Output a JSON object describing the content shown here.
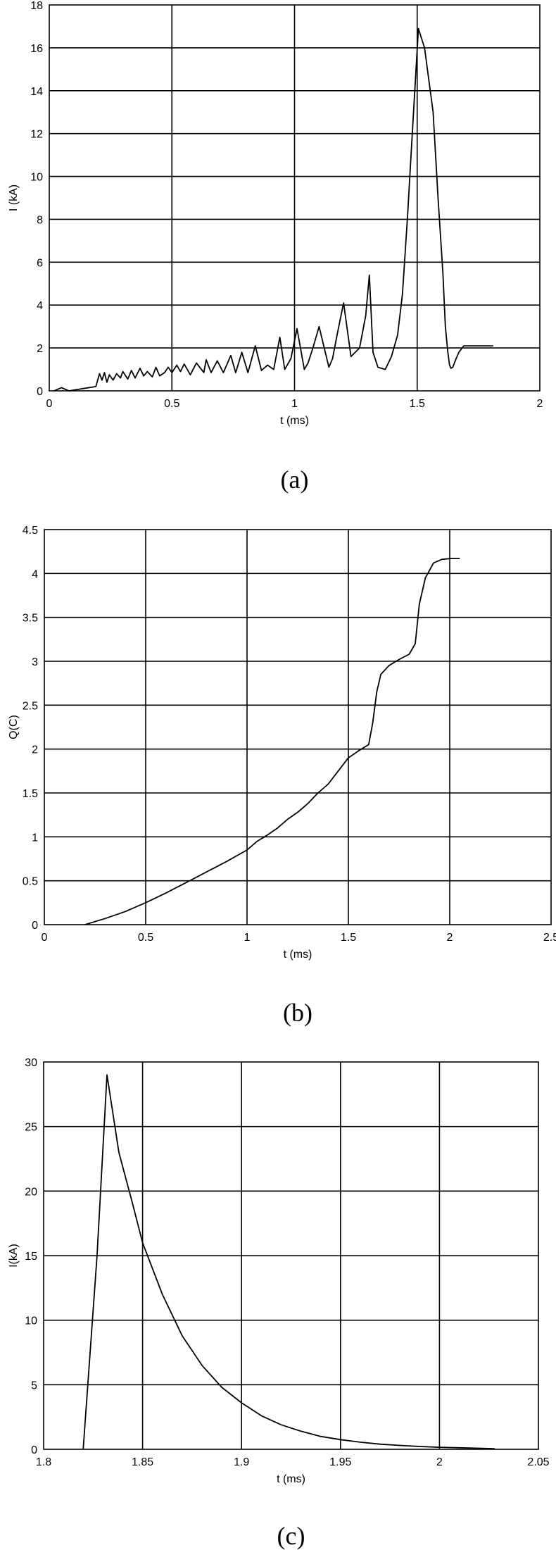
{
  "chart_data": [
    {
      "type": "line",
      "caption": "(a)",
      "xlabel": "t (ms)",
      "ylabel": "I (kA)",
      "xlim": [
        0,
        2
      ],
      "ylim": [
        0,
        18
      ],
      "xticks": [
        0,
        0.5,
        1,
        1.5,
        2
      ],
      "yticks": [
        0,
        2,
        4,
        6,
        8,
        10,
        12,
        14,
        16,
        18
      ],
      "xtick_labels": [
        "0",
        "0.5",
        "1",
        "1.5",
        "2"
      ],
      "ytick_labels": [
        "0",
        "2",
        "4",
        "6",
        "8",
        "10",
        "12",
        "14",
        "16",
        "18"
      ],
      "grid": true,
      "series": [
        {
          "x": [
            0.02,
            0.05,
            0.08,
            0.19,
            0.205,
            0.215,
            0.225,
            0.235,
            0.245,
            0.26,
            0.275,
            0.29,
            0.3,
            0.32,
            0.335,
            0.35,
            0.37,
            0.385,
            0.4,
            0.42,
            0.435,
            0.45,
            0.47,
            0.485,
            0.5,
            0.52,
            0.535,
            0.55,
            0.575,
            0.6,
            0.63,
            0.64,
            0.66,
            0.685,
            0.71,
            0.74,
            0.76,
            0.785,
            0.81,
            0.84,
            0.865,
            0.89,
            0.915,
            0.94,
            0.96,
            0.985,
            1.01,
            1.04,
            1.055,
            1.075,
            1.1,
            1.14,
            1.155,
            1.175,
            1.2,
            1.23,
            1.265,
            1.29,
            1.305,
            1.32,
            1.34,
            1.37,
            1.395,
            1.42,
            1.44,
            1.46,
            1.48,
            1.505,
            1.53,
            1.565,
            1.585,
            1.605,
            1.615,
            1.625,
            1.632,
            1.638,
            1.645,
            1.655,
            1.67,
            1.69,
            1.71,
            1.74,
            1.77,
            1.795,
            1.81
          ],
          "y": [
            0.0,
            0.15,
            0.0,
            0.2,
            0.8,
            0.5,
            0.85,
            0.4,
            0.75,
            0.5,
            0.8,
            0.6,
            0.9,
            0.55,
            0.95,
            0.6,
            1.05,
            0.7,
            0.9,
            0.65,
            1.1,
            0.7,
            0.85,
            1.1,
            0.85,
            1.2,
            0.9,
            1.25,
            0.75,
            1.3,
            0.85,
            1.45,
            0.85,
            1.4,
            0.85,
            1.65,
            0.85,
            1.8,
            0.85,
            2.1,
            0.95,
            1.2,
            1.0,
            2.5,
            1.0,
            1.5,
            2.9,
            1.0,
            1.3,
            2.0,
            3.0,
            1.1,
            1.5,
            2.7,
            4.1,
            1.6,
            2.0,
            3.5,
            5.4,
            1.8,
            1.1,
            1.0,
            1.6,
            2.6,
            4.5,
            8.0,
            12.0,
            16.9,
            16.0,
            13.0,
            9.0,
            5.5,
            3.0,
            1.8,
            1.2,
            1.05,
            1.1,
            1.4,
            1.8,
            2.1,
            2.1,
            2.1,
            2.1,
            2.1,
            2.1
          ]
        }
      ]
    },
    {
      "type": "line",
      "caption": "(b)",
      "xlabel": "t (ms)",
      "ylabel": "Q(C)",
      "xlim": [
        0,
        2.5
      ],
      "ylim": [
        0,
        4.5
      ],
      "xticks": [
        0,
        0.5,
        1,
        1.5,
        2,
        2.5
      ],
      "yticks": [
        0,
        0.5,
        1,
        1.5,
        2,
        2.5,
        3,
        3.5,
        4,
        4.5
      ],
      "xtick_labels": [
        "0",
        "0.5",
        "1",
        "1.5",
        "2",
        "2.5"
      ],
      "ytick_labels": [
        "0",
        "0.5",
        "1",
        "1.5",
        "2",
        "2.5",
        "3",
        "3.5",
        "4",
        "4.5"
      ],
      "grid": true,
      "series": [
        {
          "x": [
            0.2,
            0.3,
            0.4,
            0.5,
            0.6,
            0.7,
            0.8,
            0.9,
            1.0,
            1.05,
            1.1,
            1.15,
            1.2,
            1.25,
            1.3,
            1.35,
            1.4,
            1.45,
            1.5,
            1.55,
            1.6,
            1.62,
            1.64,
            1.66,
            1.7,
            1.75,
            1.8,
            1.83,
            1.85,
            1.88,
            1.92,
            1.96,
            2.0,
            2.05
          ],
          "y": [
            0.0,
            0.07,
            0.15,
            0.25,
            0.36,
            0.48,
            0.6,
            0.72,
            0.85,
            0.95,
            1.02,
            1.1,
            1.2,
            1.28,
            1.38,
            1.5,
            1.6,
            1.75,
            1.9,
            1.98,
            2.05,
            2.3,
            2.65,
            2.85,
            2.95,
            3.02,
            3.08,
            3.2,
            3.65,
            3.95,
            4.12,
            4.16,
            4.17,
            4.17
          ]
        }
      ]
    },
    {
      "type": "line",
      "caption": "(c)",
      "xlabel": "t (ms)",
      "ylabel": "I(kA)",
      "xlim": [
        1.8,
        2.05
      ],
      "ylim": [
        0,
        30
      ],
      "xticks": [
        1.8,
        1.85,
        1.9,
        1.95,
        2,
        2.05
      ],
      "yticks": [
        0,
        5,
        10,
        15,
        20,
        25,
        30
      ],
      "xtick_labels": [
        "1.8",
        "1.85",
        "1.9",
        "1.95",
        "2",
        "2.05"
      ],
      "ytick_labels": [
        "0",
        "5",
        "10",
        "15",
        "20",
        "25",
        "30"
      ],
      "grid": true,
      "series": [
        {
          "x": [
            1.82,
            1.827,
            1.832,
            1.838,
            1.845,
            1.85,
            1.86,
            1.87,
            1.88,
            1.89,
            1.9,
            1.91,
            1.92,
            1.93,
            1.94,
            1.95,
            1.96,
            1.97,
            1.98,
            1.99,
            2.0,
            2.01,
            2.02,
            2.028
          ],
          "y": [
            0,
            15,
            29,
            23,
            19,
            16,
            12,
            8.8,
            6.5,
            4.8,
            3.6,
            2.6,
            1.9,
            1.4,
            1.0,
            0.75,
            0.55,
            0.4,
            0.3,
            0.22,
            0.16,
            0.12,
            0.08,
            0.05
          ]
        }
      ]
    }
  ]
}
